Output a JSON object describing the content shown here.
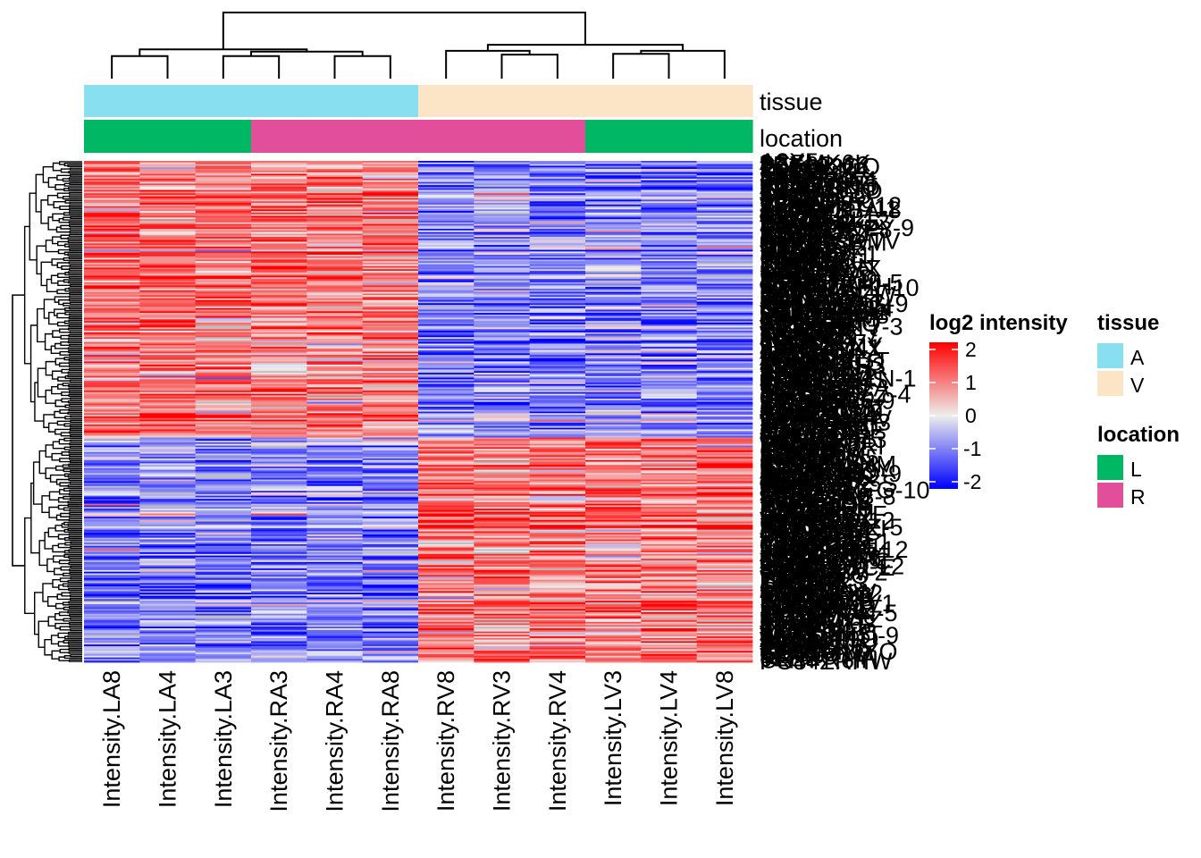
{
  "chart_data": {
    "type": "heatmap",
    "title": "",
    "columns": [
      "Intensity.LA8",
      "Intensity.LA4",
      "Intensity.LA3",
      "Intensity.RA3",
      "Intensity.RA4",
      "Intensity.RA8",
      "Intensity.RV8",
      "Intensity.RV3",
      "Intensity.RV4",
      "Intensity.LV3",
      "Intensity.LV4",
      "Intensity.LV8"
    ],
    "column_annotations": {
      "tissue": [
        "A",
        "A",
        "A",
        "A",
        "A",
        "A",
        "V",
        "V",
        "V",
        "V",
        "V",
        "V"
      ],
      "location": [
        "L",
        "L",
        "L",
        "R",
        "R",
        "R",
        "R",
        "R",
        "R",
        "L",
        "L",
        "L"
      ]
    },
    "annotation_names": [
      "tissue",
      "location"
    ],
    "row_count_approx": 310,
    "row_labels_note": "row labels overlap and are illegible",
    "row_blocks": [
      {
        "name": "atrial-high",
        "fraction": 0.55,
        "atria_mean": 1.0,
        "ventricle_mean": -0.9
      },
      {
        "name": "ventricle-high",
        "fraction": 0.45,
        "atria_mean": -0.9,
        "ventricle_mean": 1.0
      }
    ],
    "color_scale": {
      "name": "log2 intensity",
      "min": -2,
      "max": 2,
      "ticks": [
        2,
        1,
        0,
        -1,
        -2
      ],
      "colors": {
        "low": "#0000ff",
        "mid": "#eeeeee",
        "high": "#ff0000",
        "na": "#bebebe"
      }
    },
    "legends": [
      {
        "title": "log2 intensity",
        "type": "continuous"
      },
      {
        "title": "tissue",
        "items": [
          {
            "label": "A",
            "color": "#87dff0"
          },
          {
            "label": "V",
            "color": "#fce4c6"
          }
        ]
      },
      {
        "title": "location",
        "items": [
          {
            "label": "L",
            "color": "#00b764"
          },
          {
            "label": "R",
            "color": "#e34e9b"
          }
        ]
      }
    ],
    "column_dendrogram": {
      "order": [
        "LA8",
        "LA4",
        "LA3",
        "RA3",
        "RA4",
        "RA8",
        "RV8",
        "RV3",
        "RV4",
        "LV3",
        "LV4",
        "LV8"
      ],
      "merges": [
        {
          "id": "a",
          "children": [
            0,
            1
          ],
          "height": 0.3
        },
        {
          "id": "b",
          "children": [
            2,
            3
          ],
          "height": 0.3
        },
        {
          "id": "c",
          "children": [
            4,
            5
          ],
          "height": 0.3
        },
        {
          "id": "d",
          "children": [
            "b",
            "c"
          ],
          "height": 0.36
        },
        {
          "id": "e",
          "children": [
            "a",
            "d"
          ],
          "height": 0.39
        },
        {
          "id": "f",
          "children": [
            7,
            8
          ],
          "height": 0.32
        },
        {
          "id": "g",
          "children": [
            6,
            "f"
          ],
          "height": 0.37
        },
        {
          "id": "h",
          "children": [
            9,
            10
          ],
          "height": 0.33
        },
        {
          "id": "i",
          "children": [
            "h",
            11
          ],
          "height": 0.37
        },
        {
          "id": "j",
          "children": [
            "g",
            "i"
          ],
          "height": 0.45
        },
        {
          "id": "k",
          "children": [
            "e",
            "j"
          ],
          "height": 0.88
        }
      ]
    },
    "row_labels_sample": [
      "tissue",
      "location"
    ]
  }
}
